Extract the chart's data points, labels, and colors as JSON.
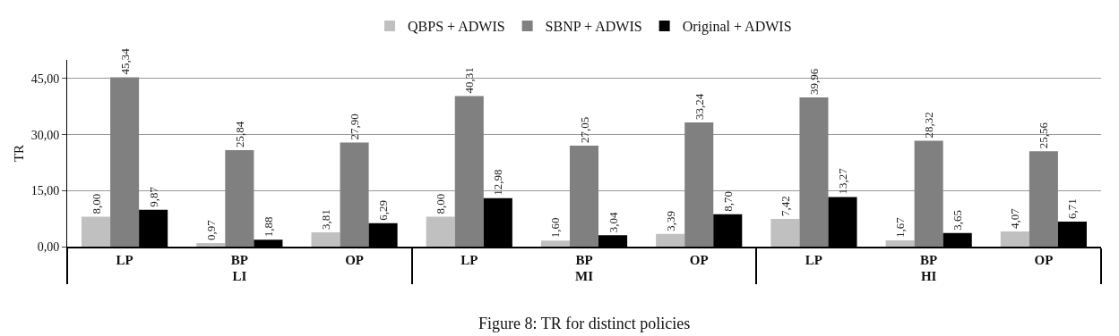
{
  "chart_data": {
    "type": "bar",
    "ylabel": "TR",
    "categories": [
      "LP",
      "BP",
      "OP",
      "LP",
      "BP",
      "OP",
      "LP",
      "BP",
      "OP"
    ],
    "series": [
      {
        "name": "QBPS + ADWIS",
        "color": "#c0c0c0",
        "values": [
          8.0,
          0.97,
          3.81,
          8.0,
          1.6,
          3.39,
          7.42,
          1.67,
          4.07
        ],
        "value_labels": [
          "8,00",
          "0,97",
          "3,81",
          "8,00",
          "1,60",
          "3,39",
          "7,42",
          "1,67",
          "4,07"
        ]
      },
      {
        "name": "SBNP + ADWIS",
        "color": "#808080",
        "values": [
          45.34,
          25.84,
          27.9,
          40.31,
          27.05,
          33.24,
          39.96,
          28.32,
          25.56
        ],
        "value_labels": [
          "45,34",
          "25,84",
          "27,90",
          "40,31",
          "27,05",
          "33,24",
          "39,96",
          "28,32",
          "25,56"
        ]
      },
      {
        "name": "Original + ADWIS",
        "color": "#000000",
        "values": [
          9.87,
          1.88,
          6.29,
          12.98,
          3.04,
          8.7,
          13.27,
          3.65,
          6.71
        ],
        "value_labels": [
          "9,87",
          "1,88",
          "6,29",
          "12,98",
          "3,04",
          "8,70",
          "13,27",
          "3,65",
          "6,71"
        ]
      }
    ],
    "annotations": [
      "LI",
      "MI",
      "HI",
      "Figure 8: TR for distinct policies"
    ],
    "ylim": [
      0,
      50
    ],
    "yticks": [
      {
        "value": 0,
        "label": "0,00"
      },
      {
        "value": 15,
        "label": "15,00"
      },
      {
        "value": 30,
        "label": "30,00"
      },
      {
        "value": 45,
        "label": "45,00"
      }
    ],
    "grid": "y",
    "legend": "top"
  }
}
